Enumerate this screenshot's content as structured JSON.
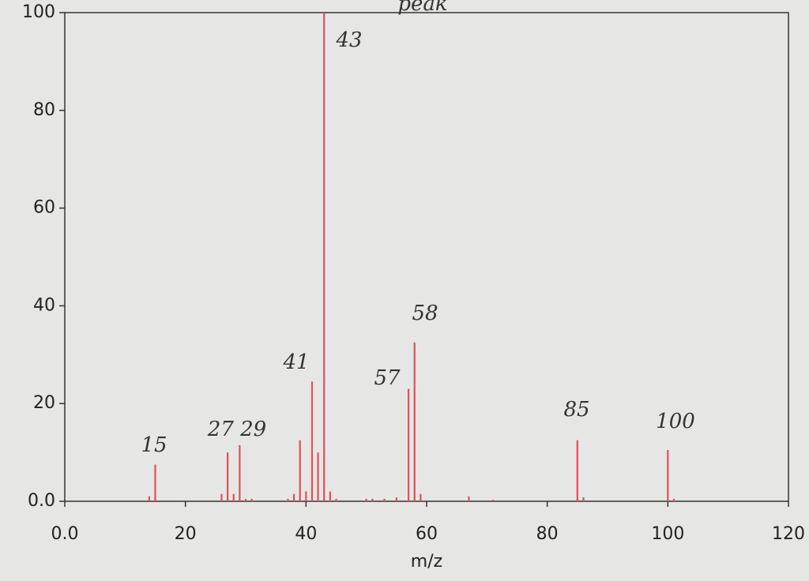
{
  "chart_data": {
    "type": "bar",
    "xlabel": "m/z",
    "x": [
      14,
      15,
      26,
      27,
      28,
      29,
      30,
      31,
      37,
      38,
      39,
      40,
      41,
      42,
      43,
      44,
      45,
      50,
      51,
      53,
      55,
      57,
      58,
      59,
      67,
      71,
      85,
      86,
      100,
      101
    ],
    "values": [
      1,
      7.5,
      1.5,
      10,
      1.5,
      11.5,
      0.5,
      0.5,
      0.5,
      1.5,
      12.5,
      2,
      24.5,
      10,
      100,
      2,
      0.5,
      0.5,
      0.5,
      0.5,
      0.8,
      23,
      32.5,
      1.5,
      1,
      0.3,
      12.5,
      0.8,
      10.5,
      0.5
    ],
    "color": "#e0505a",
    "xlim": [
      0,
      120
    ],
    "xticks": [
      {
        "value": 0,
        "label": "0.0"
      },
      20,
      40,
      60,
      80,
      100,
      120
    ],
    "ylim": [
      0,
      100
    ],
    "yticks": [
      {
        "value": 0,
        "label": "0.0"
      },
      20,
      40,
      60,
      80,
      100
    ],
    "annotations": [
      "43",
      "58",
      "57",
      "41",
      "15",
      "27 29",
      "85",
      "100",
      "peak"
    ]
  }
}
